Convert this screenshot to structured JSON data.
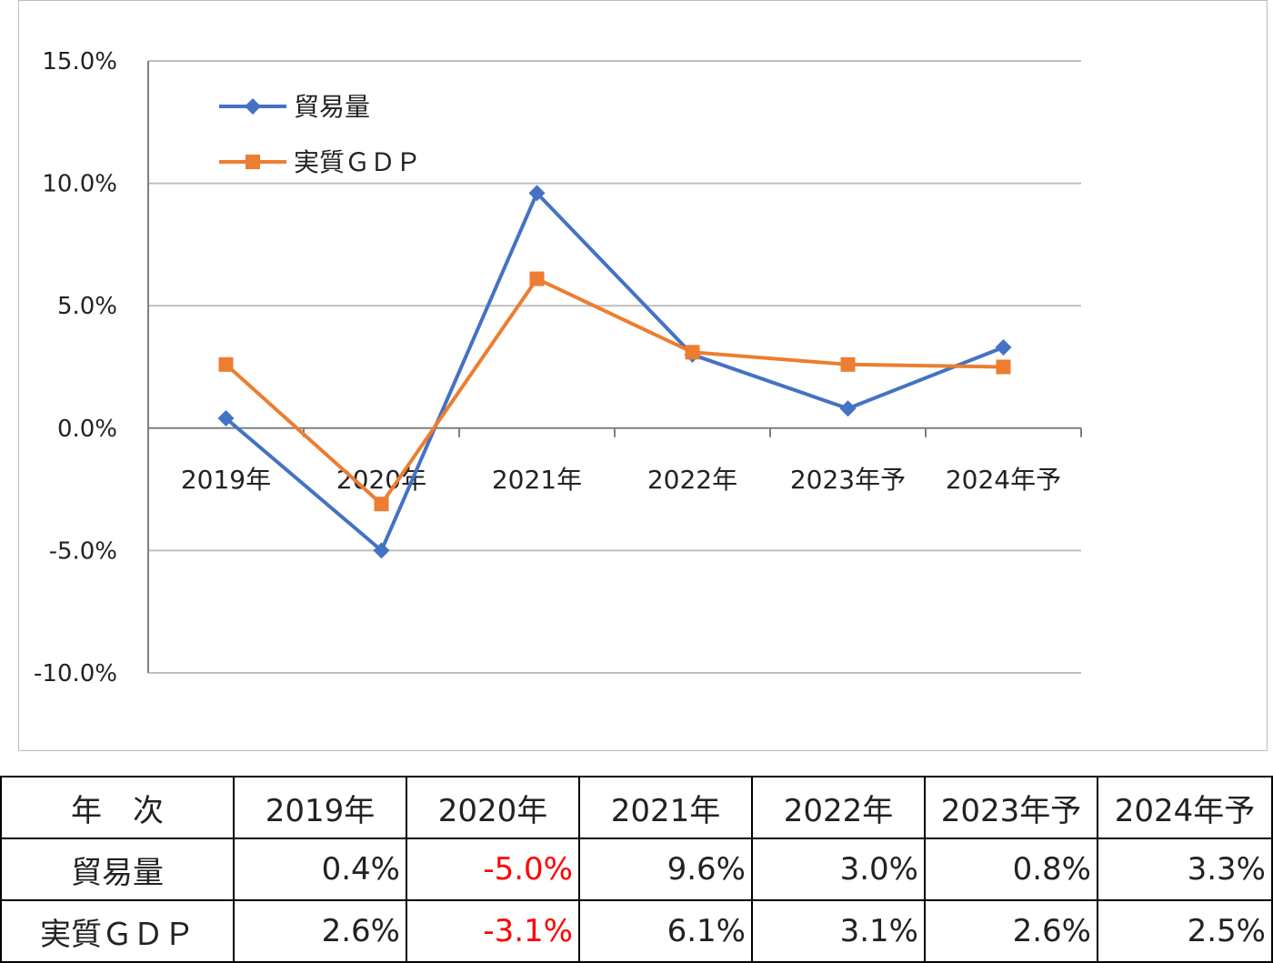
{
  "chart_data": {
    "type": "line",
    "categories": [
      "2019年",
      "2020年",
      "2021年",
      "2022年",
      "2023年予",
      "2024年予"
    ],
    "series": [
      {
        "name": "貿易量",
        "values": [
          0.4,
          -5.0,
          9.6,
          3.0,
          0.8,
          3.3
        ],
        "color": "#4472c4",
        "marker": "diamond"
      },
      {
        "name": "実質ＧＤＰ",
        "values": [
          2.6,
          -3.1,
          6.1,
          3.1,
          2.6,
          2.5
        ],
        "color": "#ed7d31",
        "marker": "square"
      }
    ],
    "ylim": [
      -10,
      15
    ],
    "yticks": [
      15,
      10,
      5,
      0,
      -5,
      -10
    ],
    "ytick_labels": [
      "15.0%",
      "10.0%",
      "5.0%",
      "0.0%",
      "-5.0%",
      "-10.0%"
    ],
    "grid": true,
    "legend": "top-left",
    "gridline_color": "#bfbfbf",
    "axis_color": "#7f7f7f"
  },
  "table": {
    "header_label": "年　次",
    "years": [
      "2019年",
      "2020年",
      "2021年",
      "2022年",
      "2023年予",
      "2024年予"
    ],
    "rows": [
      {
        "label": "貿易量",
        "cells": [
          "0.4%",
          "-5.0%",
          "9.6%",
          "3.0%",
          "0.8%",
          "3.3%"
        ]
      },
      {
        "label": "実質ＧＤＰ",
        "cells": [
          "2.6%",
          "-3.1%",
          "6.1%",
          "3.1%",
          "2.6%",
          "2.5%"
        ]
      }
    ],
    "negative_color": "#ff0000"
  }
}
